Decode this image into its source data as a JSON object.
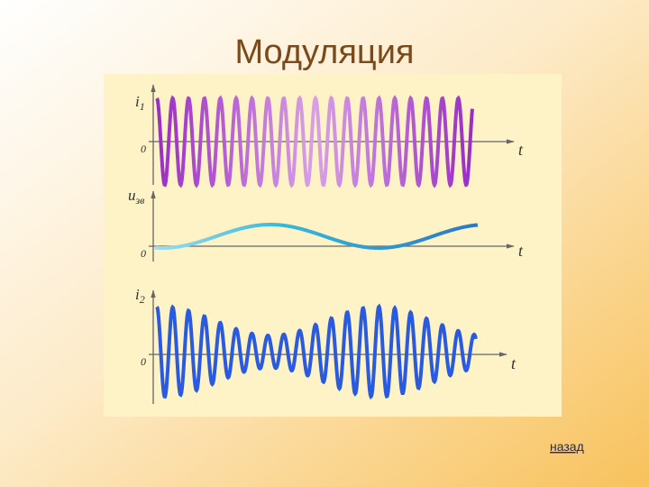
{
  "title": "Модуляция",
  "panels": [
    {
      "label": "i",
      "subscript": "1",
      "origin": "0",
      "axis": "t"
    },
    {
      "label": "u",
      "subscript": "зв",
      "origin": "0",
      "axis": "t"
    },
    {
      "label": "i",
      "subscript": "2",
      "origin": "0",
      "axis": "t"
    }
  ],
  "link": "назад"
}
